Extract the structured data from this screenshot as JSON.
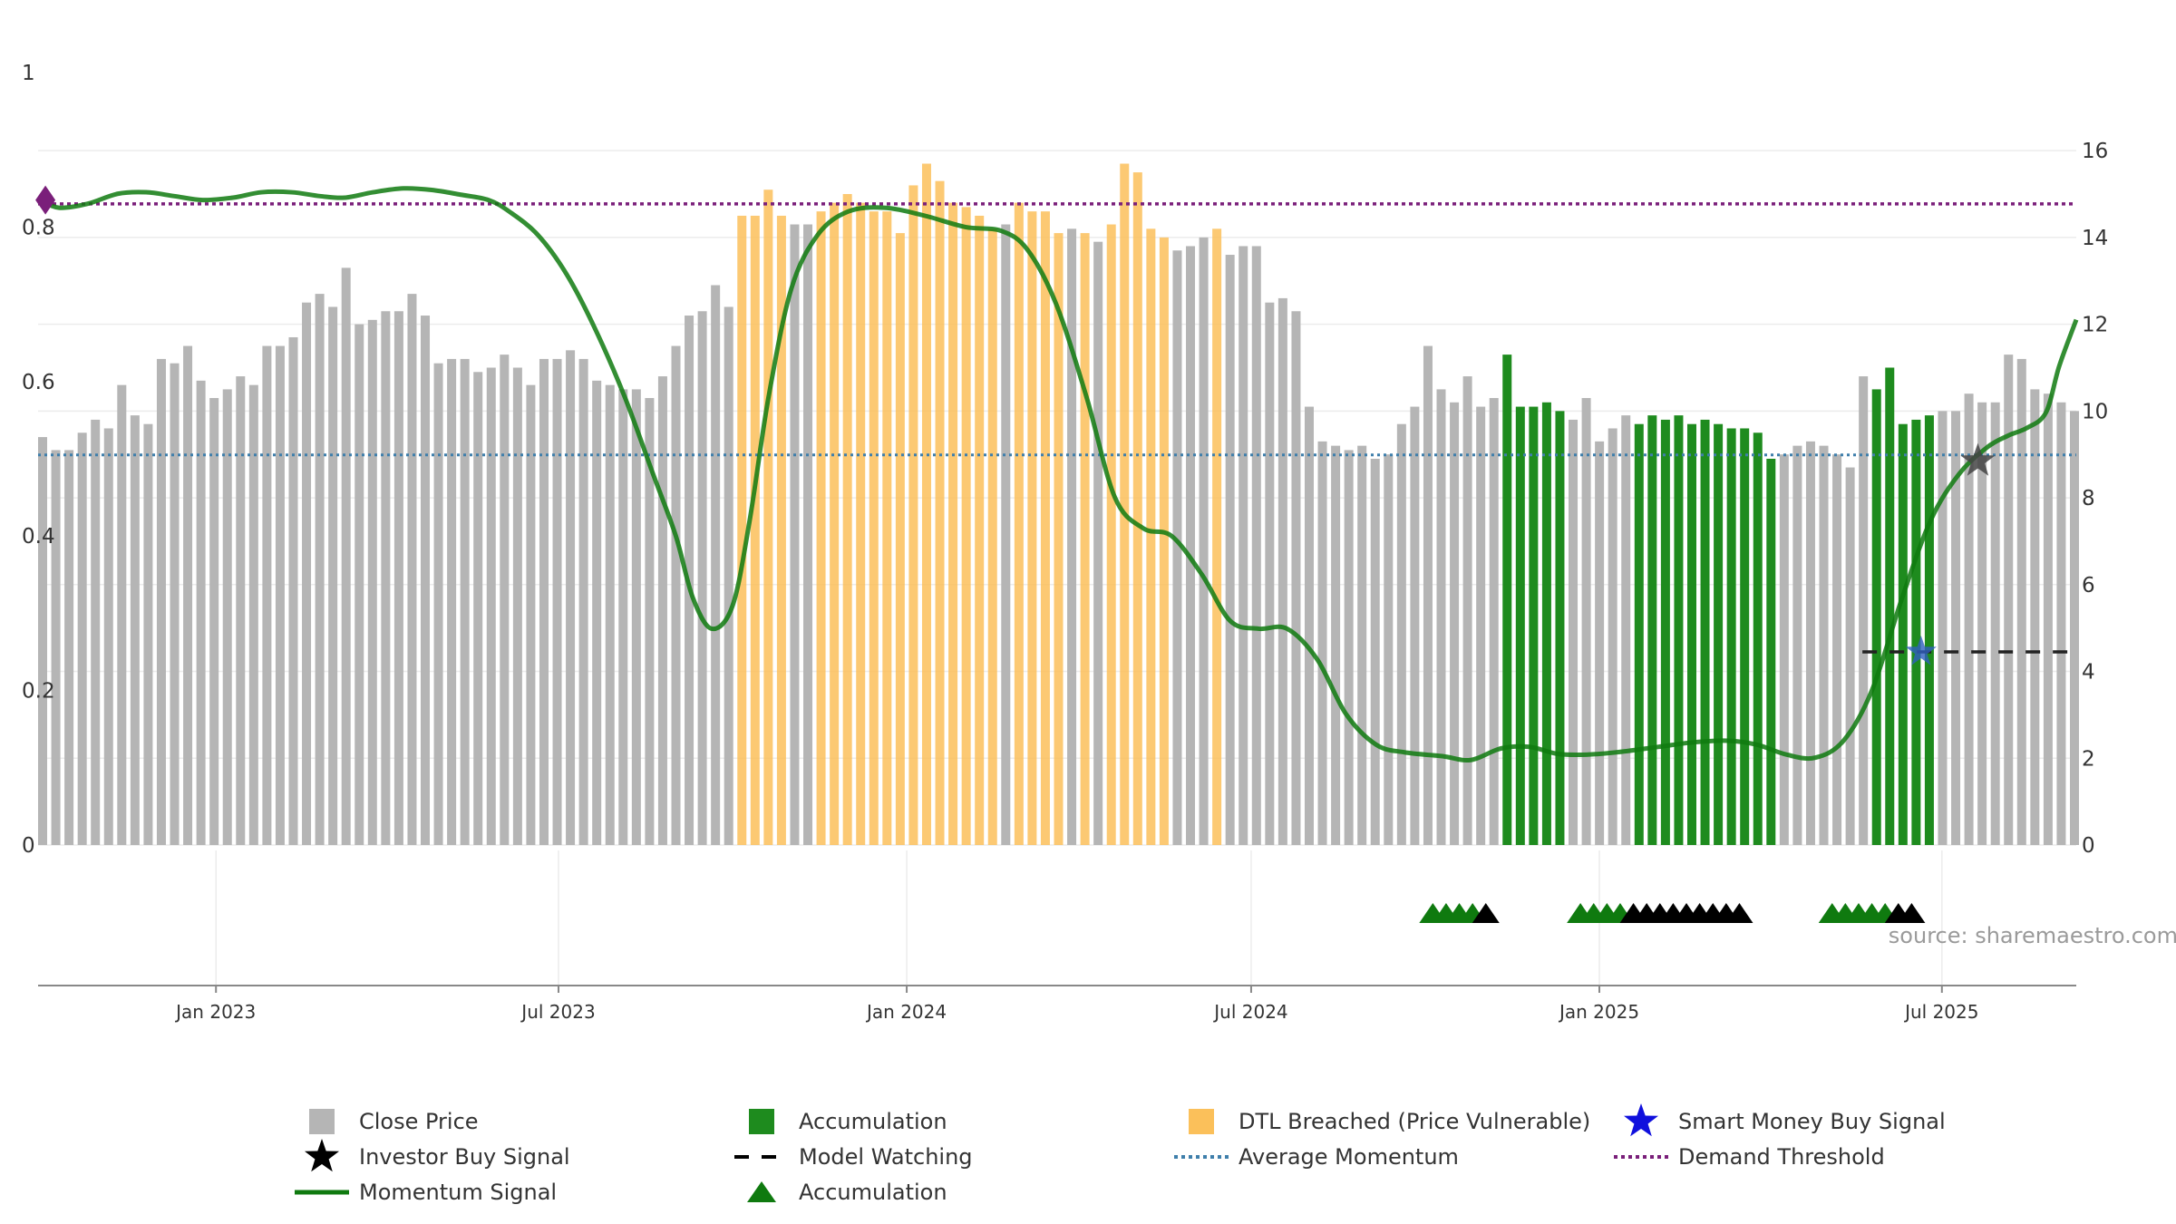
{
  "chart_data": {
    "type": "bar",
    "source_label": "source: sharemaestro.com",
    "left_axis": {
      "range": [
        0,
        1
      ],
      "ticks": [
        0,
        0.2,
        0.4,
        0.6,
        0.8,
        1
      ],
      "tick_labels": [
        "0",
        "0.2",
        "0.4",
        "0.6",
        "0.8",
        "1"
      ]
    },
    "right_axis": {
      "range": [
        0,
        17.8
      ],
      "ticks": [
        0,
        2,
        4,
        6,
        8,
        10,
        12,
        14,
        16
      ],
      "tick_labels": [
        "0",
        "2",
        "4",
        "6",
        "8",
        "10",
        "12",
        "14",
        "16"
      ]
    },
    "x_axis": {
      "range": [
        "2022-09-29",
        "2025-09-10"
      ],
      "ticks": [
        "2023-01-01",
        "2023-07-01",
        "2024-01-01",
        "2024-07-01",
        "2025-01-01",
        "2025-07-01"
      ],
      "tick_labels": [
        "Jan 2023",
        "Jul 2023",
        "Jan 2024",
        "Jul 2024",
        "Jan 2025",
        "Jul 2025"
      ]
    },
    "grid": true,
    "colors": {
      "close": "#b5b5b5",
      "accumulation": "#1e8b1e",
      "dtl": "#fbc05a",
      "momentum": "#0f7a0f",
      "average": "#3f7fab",
      "demand": "#7a1f7a",
      "model_watching": "#222222",
      "investor_star": "#444444",
      "smart_star": "#2f5fbf"
    },
    "close_price": [
      9.4,
      9.1,
      9.1,
      9.5,
      9.8,
      9.6,
      10.6,
      9.9,
      9.7,
      11.2,
      11.1,
      11.5,
      10.7,
      10.3,
      10.5,
      10.8,
      10.6,
      11.5,
      11.5,
      11.7,
      12.5,
      12.7,
      12.4,
      13.3,
      12.0,
      12.1,
      12.3,
      12.3,
      12.7,
      12.2,
      11.1,
      11.2,
      11.2,
      10.9,
      11.0,
      11.3,
      11.0,
      10.6,
      11.2,
      11.2,
      11.4,
      11.2,
      10.7,
      10.6,
      10.5,
      10.5,
      10.3,
      10.8,
      11.5,
      12.2,
      12.3,
      12.9,
      12.4,
      14.5,
      14.5,
      15.1,
      14.5,
      14.3,
      14.3,
      14.6,
      14.8,
      15.0,
      14.8,
      14.6,
      14.6,
      14.1,
      15.2,
      15.7,
      15.3,
      14.8,
      14.7,
      14.5,
      14.2,
      14.3,
      14.8,
      14.6,
      14.6,
      14.1,
      14.2,
      14.1,
      13.9,
      14.3,
      15.7,
      15.5,
      14.2,
      14.0,
      13.7,
      13.8,
      14.0,
      14.2,
      13.6,
      13.8,
      13.8,
      12.5,
      12.6,
      12.3,
      10.1,
      9.3,
      9.2,
      9.1,
      9.2,
      8.9,
      9.0,
      9.7,
      10.1,
      11.5,
      10.5,
      10.2,
      10.8,
      10.1,
      10.3,
      11.3,
      10.1,
      10.1,
      10.2,
      10.0,
      9.8,
      10.3,
      9.3,
      9.6,
      9.9,
      9.7,
      9.9,
      9.8,
      9.9,
      9.7,
      9.8,
      9.7,
      9.6,
      9.6,
      9.5,
      8.9,
      9.0,
      9.2,
      9.3,
      9.2,
      9.0,
      8.7,
      10.8,
      10.5,
      11.0,
      9.7,
      9.8,
      9.9,
      10.0,
      10.0,
      10.4,
      10.2,
      10.2,
      11.3,
      11.2,
      10.5,
      10.4,
      10.2,
      10.0
    ],
    "bar_category": [
      "c",
      "c",
      "c",
      "c",
      "c",
      "c",
      "c",
      "c",
      "c",
      "c",
      "c",
      "c",
      "c",
      "c",
      "c",
      "c",
      "c",
      "c",
      "c",
      "c",
      "c",
      "c",
      "c",
      "c",
      "c",
      "c",
      "c",
      "c",
      "c",
      "c",
      "c",
      "c",
      "c",
      "c",
      "c",
      "c",
      "c",
      "c",
      "c",
      "c",
      "c",
      "c",
      "c",
      "c",
      "c",
      "c",
      "c",
      "c",
      "c",
      "c",
      "c",
      "c",
      "c",
      "d",
      "d",
      "d",
      "d",
      "c",
      "c",
      "d",
      "d",
      "d",
      "d",
      "d",
      "d",
      "d",
      "d",
      "d",
      "d",
      "d",
      "d",
      "d",
      "d",
      "c",
      "d",
      "d",
      "d",
      "d",
      "c",
      "d",
      "c",
      "d",
      "d",
      "d",
      "d",
      "d",
      "c",
      "c",
      "c",
      "d",
      "c",
      "c",
      "c",
      "c",
      "c",
      "c",
      "c",
      "c",
      "c",
      "c",
      "c",
      "c",
      "c",
      "c",
      "c",
      "c",
      "c",
      "c",
      "c",
      "c",
      "c",
      "a",
      "a",
      "a",
      "a",
      "a",
      "c",
      "c",
      "c",
      "c",
      "c",
      "a",
      "a",
      "a",
      "a",
      "a",
      "a",
      "a",
      "a",
      "a",
      "a",
      "a",
      "c",
      "c",
      "c",
      "c",
      "c",
      "c",
      "c",
      "a",
      "a",
      "a",
      "a",
      "a",
      "c",
      "c",
      "c",
      "c",
      "c",
      "c",
      "c",
      "c",
      "c",
      "c",
      "c",
      "c",
      "c"
    ],
    "momentum_signal": [
      [
        "2022-09-30",
        0.835
      ],
      [
        "2022-10-10",
        0.825
      ],
      [
        "2022-10-25",
        0.83
      ],
      [
        "2022-11-10",
        0.843
      ],
      [
        "2022-11-25",
        0.845
      ],
      [
        "2022-12-10",
        0.84
      ],
      [
        "2022-12-25",
        0.835
      ],
      [
        "2023-01-10",
        0.838
      ],
      [
        "2023-01-25",
        0.845
      ],
      [
        "2023-02-10",
        0.845
      ],
      [
        "2023-02-25",
        0.84
      ],
      [
        "2023-03-10",
        0.838
      ],
      [
        "2023-03-25",
        0.845
      ],
      [
        "2023-04-10",
        0.85
      ],
      [
        "2023-04-25",
        0.848
      ],
      [
        "2023-05-10",
        0.842
      ],
      [
        "2023-05-25",
        0.835
      ],
      [
        "2023-06-05",
        0.82
      ],
      [
        "2023-06-20",
        0.79
      ],
      [
        "2023-07-05",
        0.74
      ],
      [
        "2023-07-20",
        0.67
      ],
      [
        "2023-08-05",
        0.58
      ],
      [
        "2023-08-20",
        0.48
      ],
      [
        "2023-09-01",
        0.4
      ],
      [
        "2023-09-10",
        0.32
      ],
      [
        "2023-09-20",
        0.28
      ],
      [
        "2023-10-01",
        0.31
      ],
      [
        "2023-10-10",
        0.42
      ],
      [
        "2023-10-20",
        0.58
      ],
      [
        "2023-11-01",
        0.72
      ],
      [
        "2023-11-15",
        0.79
      ],
      [
        "2023-12-01",
        0.82
      ],
      [
        "2023-12-20",
        0.825
      ],
      [
        "2024-01-10",
        0.815
      ],
      [
        "2024-02-01",
        0.8
      ],
      [
        "2024-02-20",
        0.795
      ],
      [
        "2024-03-05",
        0.77
      ],
      [
        "2024-03-20",
        0.7
      ],
      [
        "2024-04-05",
        0.58
      ],
      [
        "2024-04-20",
        0.45
      ],
      [
        "2024-05-05",
        0.41
      ],
      [
        "2024-05-20",
        0.4
      ],
      [
        "2024-06-05",
        0.35
      ],
      [
        "2024-06-20",
        0.29
      ],
      [
        "2024-07-05",
        0.28
      ],
      [
        "2024-07-20",
        0.28
      ],
      [
        "2024-08-05",
        0.24
      ],
      [
        "2024-08-20",
        0.17
      ],
      [
        "2024-09-05",
        0.13
      ],
      [
        "2024-09-20",
        0.12
      ],
      [
        "2024-10-10",
        0.115
      ],
      [
        "2024-10-25",
        0.11
      ],
      [
        "2024-11-10",
        0.125
      ],
      [
        "2024-11-25",
        0.127
      ],
      [
        "2024-12-10",
        0.118
      ],
      [
        "2024-12-25",
        0.117
      ],
      [
        "2025-01-10",
        0.12
      ],
      [
        "2025-02-01",
        0.127
      ],
      [
        "2025-02-20",
        0.133
      ],
      [
        "2025-03-10",
        0.135
      ],
      [
        "2025-03-25",
        0.13
      ],
      [
        "2025-04-10",
        0.117
      ],
      [
        "2025-04-25",
        0.113
      ],
      [
        "2025-05-10",
        0.135
      ],
      [
        "2025-05-25",
        0.2
      ],
      [
        "2025-06-10",
        0.32
      ],
      [
        "2025-06-25",
        0.42
      ],
      [
        "2025-07-10",
        0.48
      ],
      [
        "2025-07-25",
        0.515
      ],
      [
        "2025-08-05",
        0.53
      ],
      [
        "2025-08-15",
        0.54
      ],
      [
        "2025-08-25",
        0.56
      ],
      [
        "2025-09-01",
        0.62
      ],
      [
        "2025-09-10",
        0.68
      ]
    ],
    "average_momentum": 0.505,
    "demand_threshold": 0.83,
    "model_watching": {
      "start": "2025-05-20",
      "end": "2025-09-10",
      "value": 0.25
    },
    "investor_buy_signal": [
      [
        "2025-07-20",
        0.497
      ]
    ],
    "smart_money_buy_signal": [
      [
        "2025-06-20",
        0.25
      ]
    ],
    "demand_marker": [
      [
        "2022-09-30",
        0.835
      ]
    ],
    "accumulation_markers": [
      {
        "date": "2024-10-05",
        "color": "green"
      },
      {
        "date": "2024-10-12",
        "color": "green"
      },
      {
        "date": "2024-10-19",
        "color": "green"
      },
      {
        "date": "2024-10-26",
        "color": "green"
      },
      {
        "date": "2024-11-02",
        "color": "black"
      },
      {
        "date": "2024-12-22",
        "color": "green"
      },
      {
        "date": "2024-12-29",
        "color": "green"
      },
      {
        "date": "2025-01-05",
        "color": "green"
      },
      {
        "date": "2025-01-12",
        "color": "green"
      },
      {
        "date": "2025-01-19",
        "color": "black"
      },
      {
        "date": "2025-01-26",
        "color": "black"
      },
      {
        "date": "2025-02-02",
        "color": "black"
      },
      {
        "date": "2025-02-09",
        "color": "black"
      },
      {
        "date": "2025-02-16",
        "color": "black"
      },
      {
        "date": "2025-02-23",
        "color": "black"
      },
      {
        "date": "2025-03-02",
        "color": "black"
      },
      {
        "date": "2025-03-09",
        "color": "black"
      },
      {
        "date": "2025-03-16",
        "color": "black"
      },
      {
        "date": "2025-05-04",
        "color": "green"
      },
      {
        "date": "2025-05-11",
        "color": "green"
      },
      {
        "date": "2025-05-18",
        "color": "green"
      },
      {
        "date": "2025-05-25",
        "color": "green"
      },
      {
        "date": "2025-06-01",
        "color": "green"
      },
      {
        "date": "2025-06-08",
        "color": "black"
      },
      {
        "date": "2025-06-15",
        "color": "black"
      }
    ],
    "legend": [
      {
        "label": "Close Price",
        "symbol": "square",
        "color": "#b5b5b5"
      },
      {
        "label": "Accumulation",
        "symbol": "square",
        "color": "#1e8b1e"
      },
      {
        "label": "DTL Breached (Price Vulnerable)",
        "symbol": "square",
        "color": "#fbc05a"
      },
      {
        "label": "Smart Money Buy Signal",
        "symbol": "star",
        "color": "#1010dd"
      },
      {
        "label": "Investor Buy Signal",
        "symbol": "star",
        "color": "#000000"
      },
      {
        "label": "Model Watching",
        "symbol": "dash",
        "color": "#000000"
      },
      {
        "label": "Average Momentum",
        "symbol": "dot",
        "color": "#3f7fab"
      },
      {
        "label": "Demand Threshold",
        "symbol": "dot",
        "color": "#7a1f7a"
      },
      {
        "label": "Momentum Signal",
        "symbol": "line",
        "color": "#0f7a0f"
      },
      {
        "label": "Accumulation",
        "symbol": "triangle",
        "color": "#0f7a0f"
      }
    ]
  }
}
